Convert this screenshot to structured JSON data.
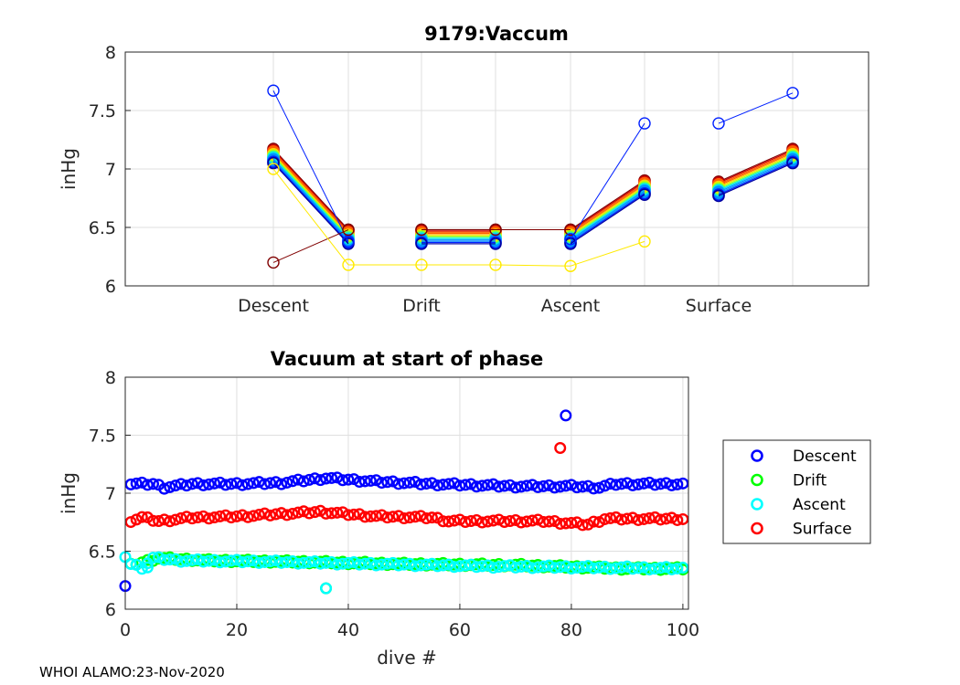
{
  "footer": "WHOI ALAMO:23-Nov-2020",
  "chart_data": [
    {
      "type": "line",
      "title": "9179:Vaccum",
      "xlabel": "",
      "ylabel": "inHg",
      "ylim": [
        6,
        8
      ],
      "yticks": [
        "6",
        "6.5",
        "7",
        "7.5",
        "8"
      ],
      "categories": [
        "Descent",
        "Drift",
        "Ascent",
        "Surface"
      ],
      "grid": true,
      "colormap": [
        "#0000a0",
        "#0020ff",
        "#0090ff",
        "#00e0ff",
        "#40ff80",
        "#c0ff00",
        "#ffd000",
        "#ff6000",
        "#d00000",
        "#800000"
      ],
      "main_series": [
        {
          "start": 7.05,
          "end": 6.36
        },
        {
          "start": 6.36,
          "end": 6.36
        },
        {
          "start": 6.36,
          "end": 6.78
        },
        {
          "start": 6.77,
          "end": 7.05
        }
      ],
      "outliers": [
        {
          "color": "#0020ff",
          "points": [
            [
              0,
              7.67
            ],
            [
              1,
              6.38
            ]
          ]
        },
        {
          "color": "#800000",
          "points": [
            [
              0,
              6.2
            ],
            [
              1,
              6.48
            ]
          ]
        },
        {
          "color": "#ffea00",
          "points": [
            [
              0,
              7.0
            ],
            [
              1,
              6.18
            ],
            [
              2,
              6.18
            ],
            [
              3,
              6.18
            ],
            [
              4,
              6.17
            ],
            [
              5,
              6.38
            ]
          ]
        },
        {
          "color": "#800000",
          "points": [
            [
              2,
              6.48
            ],
            [
              3,
              6.48
            ],
            [
              4,
              6.48
            ]
          ]
        },
        {
          "color": "#0020ff",
          "points": [
            [
              4,
              6.4
            ],
            [
              5,
              7.39
            ]
          ]
        },
        {
          "color": "#0020ff",
          "points": [
            [
              6,
              7.39
            ],
            [
              7,
              7.65
            ]
          ]
        }
      ]
    },
    {
      "type": "scatter",
      "title": "Vacuum at start of phase",
      "xlabel": "dive #",
      "ylabel": "inHg",
      "xlim": [
        0,
        101
      ],
      "ylim": [
        6,
        8
      ],
      "xticks": [
        "0",
        "20",
        "40",
        "60",
        "80",
        "100"
      ],
      "yticks": [
        "6",
        "6.5",
        "7",
        "7.5",
        "8"
      ],
      "grid": true,
      "legend": "right",
      "series": [
        {
          "name": "Descent",
          "color": "#0000ff",
          "profile": [
            [
              1,
              7.08
            ],
            [
              5,
              7.08
            ],
            [
              7,
              7.05
            ],
            [
              12,
              7.08
            ],
            [
              20,
              7.08
            ],
            [
              28,
              7.09
            ],
            [
              36,
              7.13
            ],
            [
              45,
              7.1
            ],
            [
              55,
              7.08
            ],
            [
              70,
              7.06
            ],
            [
              80,
              7.06
            ],
            [
              85,
              7.05
            ],
            [
              88,
              7.08
            ],
            [
              100,
              7.08
            ]
          ],
          "extra": [
            [
              0,
              6.2
            ],
            [
              79,
              7.67
            ]
          ]
        },
        {
          "name": "Drift",
          "color": "#00ff00",
          "profile": [
            [
              1,
              6.38
            ],
            [
              6,
              6.44
            ],
            [
              15,
              6.42
            ],
            [
              30,
              6.41
            ],
            [
              50,
              6.39
            ],
            [
              70,
              6.38
            ],
            [
              90,
              6.35
            ],
            [
              100,
              6.35
            ]
          ],
          "extra": [
            [
              36,
              6.18
            ]
          ]
        },
        {
          "name": "Ascent",
          "color": "#00ffff",
          "profile": [
            [
              1,
              6.39
            ],
            [
              3,
              6.36
            ],
            [
              5,
              6.44
            ],
            [
              10,
              6.42
            ],
            [
              25,
              6.41
            ],
            [
              45,
              6.39
            ],
            [
              65,
              6.37
            ],
            [
              85,
              6.36
            ],
            [
              100,
              6.35
            ]
          ],
          "extra": [
            [
              0,
              6.45
            ],
            [
              4,
              6.36
            ],
            [
              36,
              6.18
            ]
          ]
        },
        {
          "name": "Surface",
          "color": "#ff0000",
          "profile": [
            [
              0,
              6.75
            ],
            [
              3,
              6.79
            ],
            [
              6,
              6.76
            ],
            [
              12,
              6.79
            ],
            [
              20,
              6.8
            ],
            [
              35,
              6.84
            ],
            [
              45,
              6.8
            ],
            [
              55,
              6.79
            ],
            [
              58,
              6.76
            ],
            [
              75,
              6.76
            ],
            [
              80,
              6.74
            ],
            [
              83,
              6.73
            ],
            [
              86,
              6.78
            ],
            [
              95,
              6.78
            ],
            [
              100,
              6.78
            ]
          ],
          "extra": [
            [
              78,
              7.39
            ]
          ]
        }
      ]
    }
  ]
}
